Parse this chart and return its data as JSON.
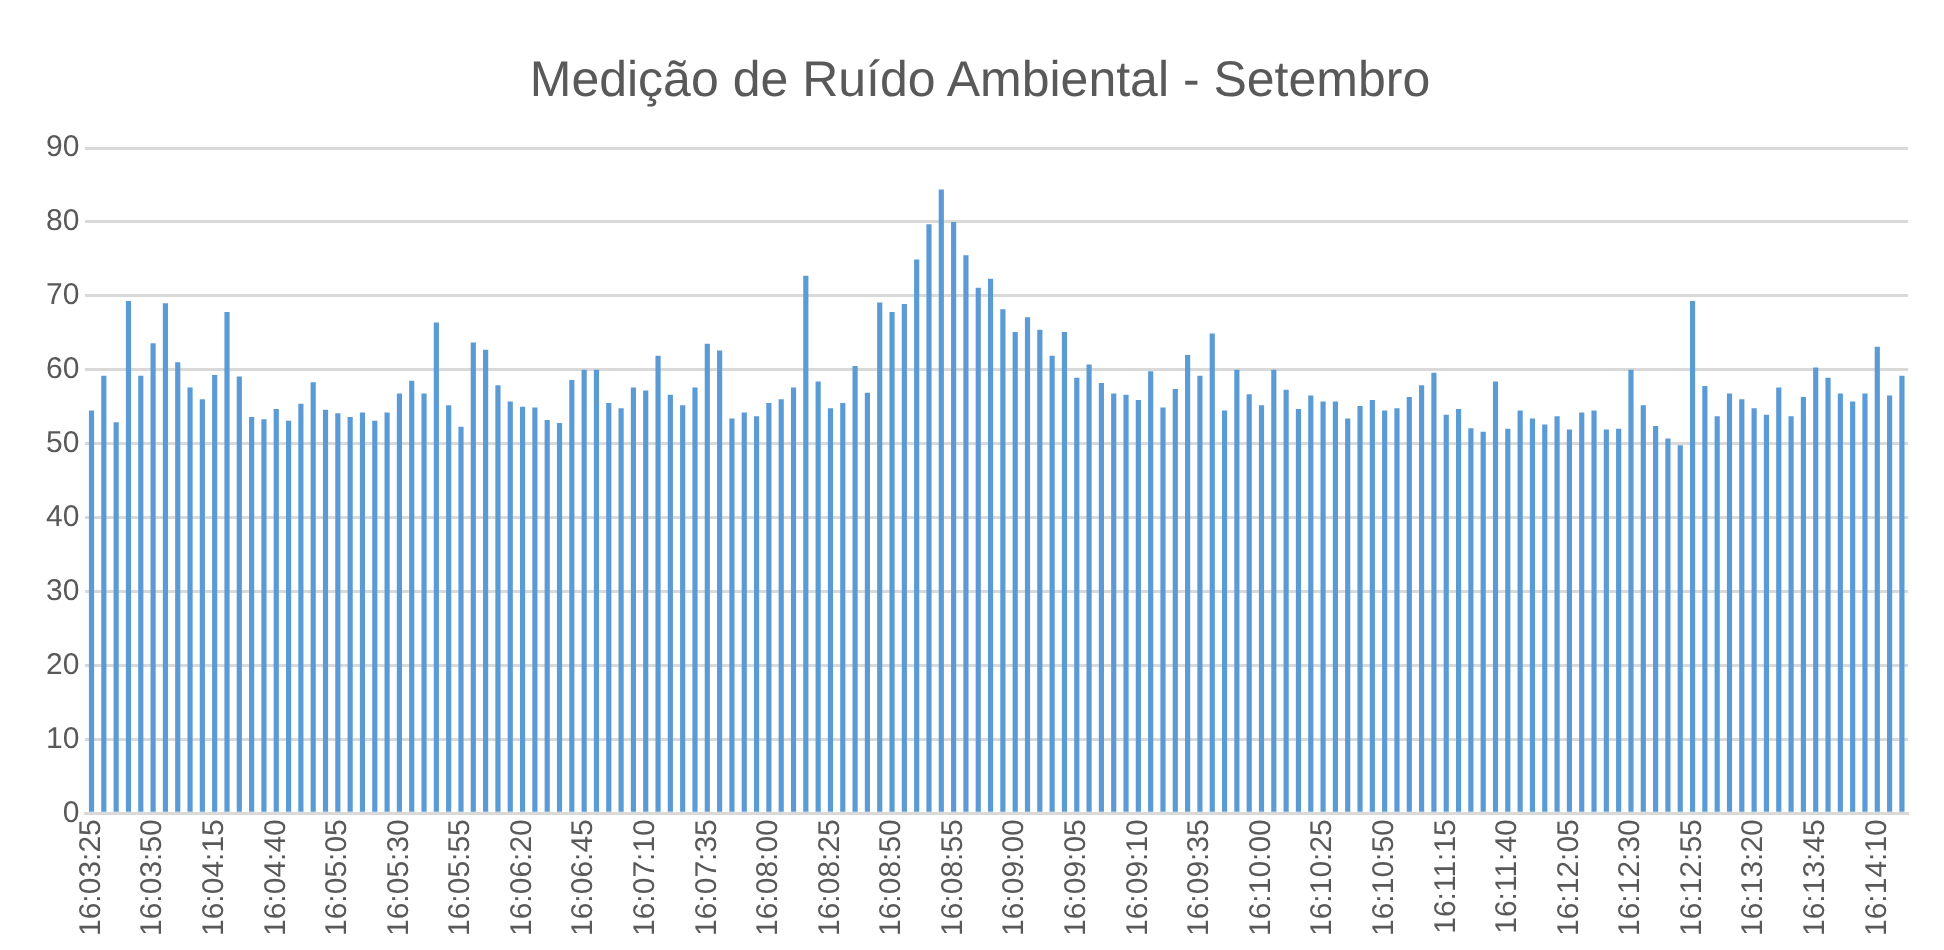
{
  "chart_data": {
    "type": "bar",
    "title": "Medição de Ruído Ambiental - Setembro",
    "categories": [
      "16:03:25",
      null,
      null,
      null,
      null,
      "16:03:50",
      null,
      null,
      null,
      null,
      "16:04:15",
      null,
      null,
      null,
      null,
      "16:04:40",
      null,
      null,
      null,
      null,
      "16:05:05",
      null,
      null,
      null,
      null,
      "16:05:30",
      null,
      null,
      null,
      null,
      "16:05:55",
      null,
      null,
      null,
      null,
      "16:06:20",
      null,
      null,
      null,
      null,
      "16:06:45",
      null,
      null,
      null,
      null,
      "16:07:10",
      null,
      null,
      null,
      null,
      "16:07:35",
      null,
      null,
      null,
      null,
      "16:08:00",
      null,
      null,
      null,
      null,
      "16:08:25",
      null,
      null,
      null,
      null,
      "16:08:50",
      null,
      null,
      null,
      null,
      "16:08:55",
      null,
      null,
      null,
      null,
      "16:09:00",
      null,
      null,
      null,
      null,
      "16:09:05",
      null,
      null,
      null,
      null,
      "16:09:10",
      null,
      null,
      null,
      null,
      "16:09:35",
      null,
      null,
      null,
      null,
      "16:10:00",
      null,
      null,
      null,
      null,
      "16:10:25",
      null,
      null,
      null,
      null,
      "16:10:50",
      null,
      null,
      null,
      null,
      "16:11:15",
      null,
      null,
      null,
      null,
      "16:11:40",
      null,
      null,
      null,
      null,
      "16:12:05",
      null,
      null,
      null,
      null,
      "16:12:30",
      null,
      null,
      null,
      null,
      "16:12:55",
      null,
      null,
      null,
      null,
      "16:13:20",
      null,
      null,
      null,
      null,
      "16:13:45",
      null,
      null,
      null,
      null,
      "16:14:10",
      null,
      null
    ],
    "values": [
      54.5,
      59.2,
      52.9,
      69.3,
      59.2,
      63.6,
      69.0,
      61.0,
      57.6,
      56.0,
      59.3,
      67.8,
      59.1,
      53.6,
      53.3,
      54.7,
      53.1,
      55.4,
      58.3,
      54.6,
      54.1,
      53.6,
      54.2,
      53.1,
      54.2,
      56.8,
      58.5,
      56.8,
      66.4,
      55.2,
      52.3,
      63.7,
      62.7,
      57.9,
      55.7,
      55.0,
      54.9,
      53.2,
      52.8,
      58.6,
      60.0,
      60.0,
      55.5,
      54.8,
      57.6,
      57.2,
      61.9,
      56.6,
      55.2,
      57.6,
      63.5,
      62.6,
      53.4,
      54.2,
      53.7,
      55.5,
      56.0,
      57.6,
      72.7,
      58.4,
      54.8,
      55.5,
      60.5,
      56.9,
      69.1,
      67.8,
      68.9,
      74.9,
      79.7,
      84.4,
      80.0,
      75.5,
      71.1,
      72.3,
      68.2,
      65.1,
      67.1,
      65.4,
      61.9,
      65.1,
      58.9,
      60.7,
      58.2,
      56.8,
      56.6,
      55.9,
      59.8,
      54.9,
      57.4,
      62.0,
      59.2,
      64.9,
      54.5,
      60.0,
      56.7,
      55.2,
      60.0,
      57.3,
      54.7,
      56.5,
      55.7,
      55.7,
      53.4,
      55.1,
      55.9,
      54.5,
      54.8,
      56.3,
      57.9,
      59.6,
      53.9,
      54.7,
      52.1,
      51.6,
      58.4,
      52.0,
      54.5,
      53.4,
      52.6,
      53.7,
      51.9,
      54.2,
      54.5,
      51.9,
      52.0,
      60.0,
      55.2,
      52.4,
      50.7,
      49.8,
      69.3,
      57.8,
      53.7,
      56.8,
      56.0,
      54.8,
      53.9,
      57.6,
      53.7,
      56.3,
      60.3,
      58.9,
      56.8,
      55.7,
      56.8,
      63.1,
      56.5,
      59.2
    ],
    "color": "#5b9bd5",
    "ylim": [
      0,
      90
    ],
    "yticks": [
      0,
      10,
      20,
      30,
      40,
      50,
      60,
      70,
      80,
      90
    ],
    "grid": "y",
    "legend": false
  }
}
